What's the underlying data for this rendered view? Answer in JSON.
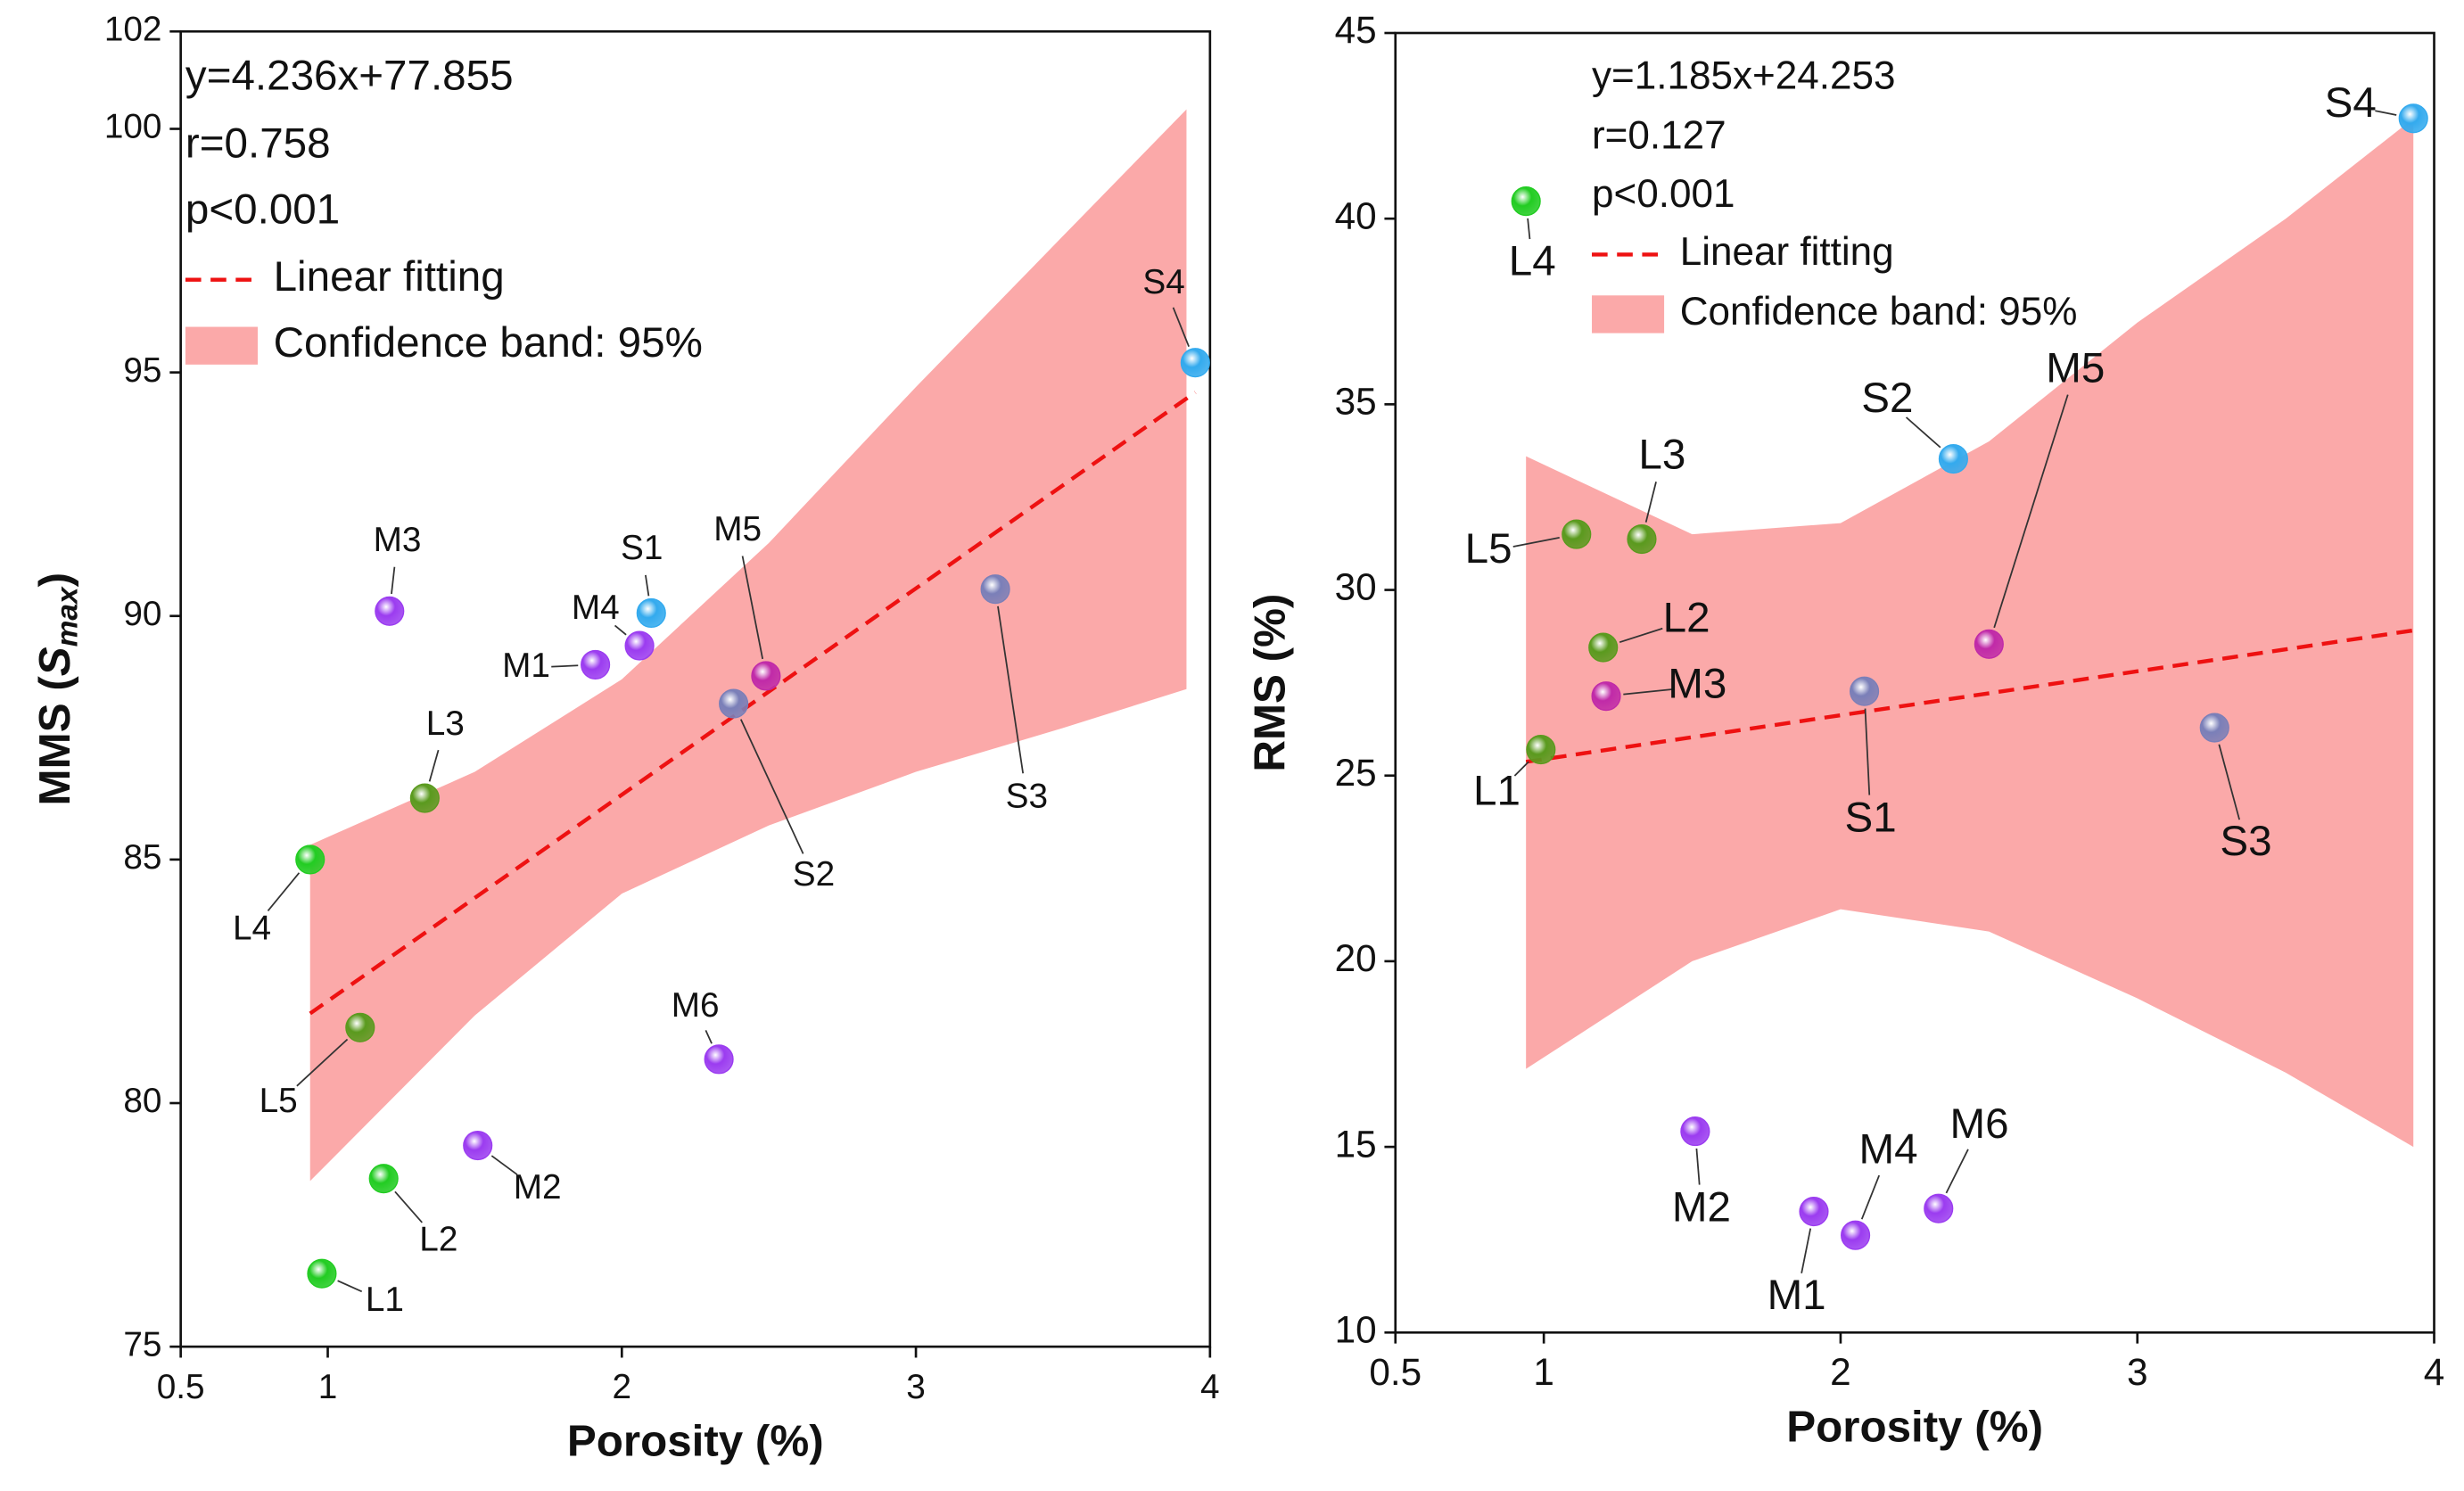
{
  "chart_data": [
    {
      "type": "scatter",
      "xlabel": "Porosity (%)",
      "ylabel": {
        "prefix": "MMS (",
        "symbol": "S",
        "sub": "max",
        "suffix": ")"
      },
      "xlim": [
        0.5,
        4
      ],
      "ylim": [
        75,
        102
      ],
      "xticks": [
        0.5,
        1,
        2,
        3,
        4
      ],
      "yticks": [
        75,
        80,
        85,
        90,
        95,
        100,
        102
      ],
      "legend": {
        "equation": "y=4.236x+77.855",
        "r": "r=0.758",
        "p": "p<0.001",
        "fit_label": "Linear fitting",
        "band_label": "Confidence band: 95%"
      },
      "fit_color": "#ee1111",
      "band_color": "#fba9a9",
      "series": [
        {
          "labels": [
            "L1",
            "L2",
            "L3",
            "L4",
            "L5",
            "M1",
            "M2",
            "M3",
            "M4",
            "M5",
            "M6",
            "S1",
            "S2",
            "S3",
            "S4"
          ],
          "x": [
            0.98,
            1.19,
            1.33,
            0.94,
            1.11,
            1.91,
            1.51,
            1.21,
            2.06,
            2.49,
            2.33,
            2.1,
            2.38,
            3.27,
            3.95
          ],
          "values": [
            76.5,
            78.45,
            86.26,
            85.0,
            81.55,
            89.0,
            79.13,
            90.1,
            89.39,
            88.77,
            80.9,
            90.06,
            88.2,
            90.55,
            95.2
          ],
          "colors": [
            "#22cc22",
            "#22cc22",
            "#5a9a1e",
            "#22cc22",
            "#5a9a1e",
            "#9b3cf0",
            "#9b3cf0",
            "#9b3cf0",
            "#9b3cf0",
            "#c02aa8",
            "#9b3cf0",
            "#33aaee",
            "#7a7fb8",
            "#7a7fb8",
            "#33aaee"
          ]
        }
      ],
      "fit_line": {
        "x": [
          0.94,
          3.95
        ],
        "y": [
          81.84,
          94.59
        ]
      },
      "band": {
        "x": [
          0.94,
          1.5,
          2.0,
          2.5,
          3.0,
          3.5,
          3.92
        ],
        "upper": [
          85.3,
          86.8,
          88.7,
          91.5,
          94.7,
          97.8,
          100.4
        ],
        "lower": [
          78.4,
          81.8,
          84.3,
          85.7,
          86.8,
          87.7,
          88.5
        ]
      }
    },
    {
      "type": "scatter",
      "xlabel": "Porosity (%)",
      "ylabel": "RMS (%)",
      "xlim": [
        0.5,
        4
      ],
      "ylim": [
        10,
        45
      ],
      "xticks": [
        0.5,
        1,
        2,
        3,
        4
      ],
      "yticks": [
        10,
        15,
        20,
        25,
        30,
        35,
        40,
        45
      ],
      "legend": {
        "equation": "y=1.185x+24.253",
        "r": "r=0.127",
        "p": "p<0.001",
        "fit_label": "Linear fitting",
        "band_label": "Confidence band: 95%"
      },
      "fit_color": "#ee1111",
      "band_color": "#fba9a9",
      "series": [
        {
          "labels": [
            "L1",
            "L2",
            "L3",
            "L4",
            "L5",
            "M1",
            "M2",
            "M3",
            "M4",
            "M5",
            "M6",
            "S1",
            "S2",
            "S3",
            "S4"
          ],
          "x": [
            0.99,
            1.2,
            1.33,
            0.94,
            1.11,
            1.91,
            1.51,
            1.21,
            2.05,
            2.5,
            2.33,
            2.08,
            2.38,
            3.26,
            3.93
          ],
          "values": [
            25.7,
            28.45,
            31.37,
            40.47,
            31.5,
            13.26,
            15.42,
            27.14,
            12.62,
            28.54,
            13.34,
            27.27,
            33.53,
            26.29,
            42.7
          ],
          "colors": [
            "#5a9a1e",
            "#5a9a1e",
            "#5a9a1e",
            "#22cc22",
            "#5a9a1e",
            "#9b3cf0",
            "#9b3cf0",
            "#c02aa8",
            "#9b3cf0",
            "#c02aa8",
            "#9b3cf0",
            "#7a7fb8",
            "#33aaee",
            "#7a7fb8",
            "#33aaee"
          ]
        }
      ],
      "fit_line": {
        "x": [
          0.94,
          3.93
        ],
        "y": [
          25.37,
          28.91
        ]
      },
      "band": {
        "x": [
          0.94,
          1.5,
          2.0,
          2.5,
          3.0,
          3.5,
          3.93
        ],
        "upper": [
          33.6,
          31.5,
          31.8,
          34.0,
          37.2,
          40.0,
          42.7
        ],
        "lower": [
          17.1,
          20.0,
          21.4,
          20.8,
          19.0,
          17.0,
          15.0
        ]
      }
    }
  ]
}
